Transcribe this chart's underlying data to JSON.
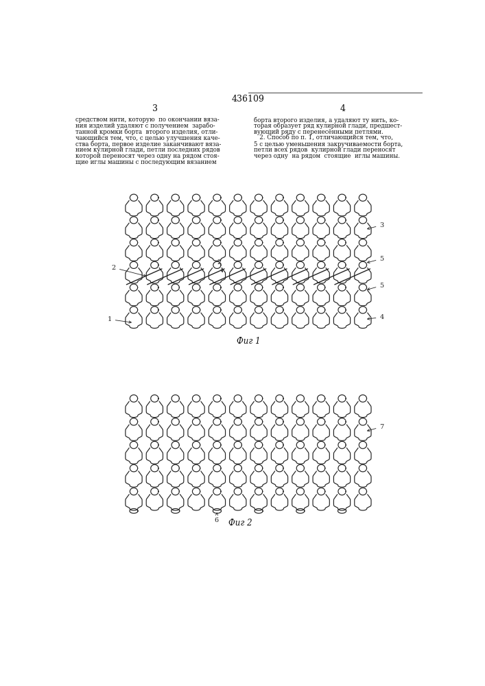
{
  "patent_number": "436109",
  "page_left": "3",
  "page_right": "4",
  "text_left": "средством нити, которую  по окончании вяза-\nния изделий удаляют с получением  зарабо-\nтанной кромки борта  второго изделия, отли-\nчающийся тем, что, с целью улучшения каче-\nства борта, первое изделие заканчивают вяза-\nнием кулирной глади, петли последних рядов\nкоторой переносят через одну на рядом стоя-\nщие иглы машины с последующим вязанием",
  "text_right": "борта второго изделия, а удаляют ту нить, ко-\nторая образует ряд кулирной глади, предшест-\nвующий ряду с перенесёнными петлями.\n   2. Способ по п. 1, отличающийся тем, что,\n5 с целью уменьшения закручиваемости борта,\nпетли всех рядов  кулирной глади переносят\nчерез одну  на рядом  стоящие  иглы машины.",
  "fig1_label": "Фиг 1",
  "fig2_label": "Фиг 2",
  "background_color": "#ffffff",
  "line_color": "#222222",
  "text_color": "#111111"
}
